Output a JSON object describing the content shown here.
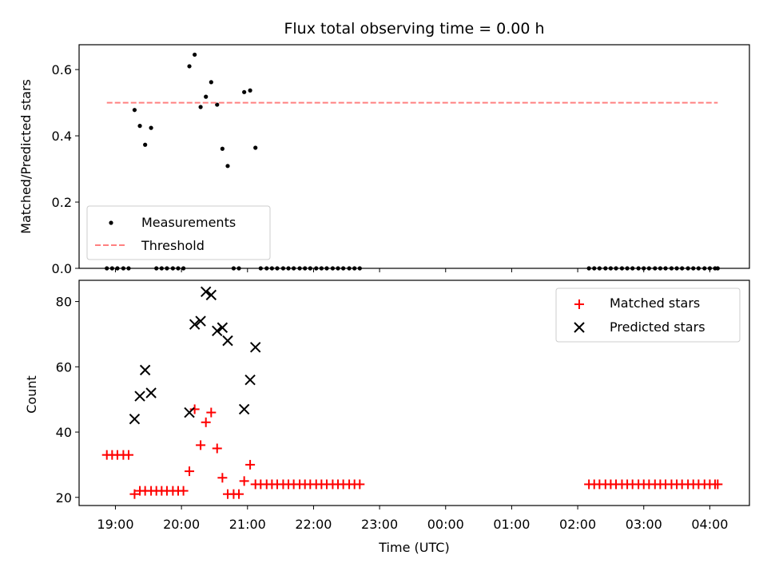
{
  "title": "Flux total observing time = 0.00 h",
  "colors": {
    "measurement": "#000000",
    "threshold": "#ff8080",
    "matched": "#ff0000",
    "predicted": "#000000"
  },
  "x_ticks": [
    "19:00",
    "20:00",
    "21:00",
    "22:00",
    "23:00",
    "00:00",
    "01:00",
    "02:00",
    "03:00",
    "04:00"
  ],
  "xlabel": "Time (UTC)",
  "chart_data": [
    {
      "type": "scatter",
      "ylabel": "Matched/Predicted stars",
      "xlim": [
        18.45,
        28.6
      ],
      "ylim": [
        0,
        0.675
      ],
      "yticks": [
        0.0,
        0.2,
        0.4,
        0.6
      ],
      "ytick_labels": [
        "0.0",
        "0.2",
        "0.4",
        "0.6"
      ],
      "legend_position": "lower-left",
      "series": [
        {
          "name": "Measurements",
          "marker": "dot",
          "points": [
            [
              18.87,
              0.0
            ],
            [
              18.95,
              0.0
            ],
            [
              19.03,
              0.0
            ],
            [
              19.12,
              0.0
            ],
            [
              19.2,
              0.0
            ],
            [
              19.29,
              0.478
            ],
            [
              19.37,
              0.43
            ],
            [
              19.45,
              0.373
            ],
            [
              19.54,
              0.424
            ],
            [
              19.62,
              0.0
            ],
            [
              19.7,
              0.0
            ],
            [
              19.78,
              0.0
            ],
            [
              19.87,
              0.0
            ],
            [
              19.95,
              0.0
            ],
            [
              20.03,
              0.0
            ],
            [
              20.12,
              0.61
            ],
            [
              20.2,
              0.645
            ],
            [
              20.29,
              0.487
            ],
            [
              20.37,
              0.518
            ],
            [
              20.45,
              0.562
            ],
            [
              20.54,
              0.494
            ],
            [
              20.62,
              0.361
            ],
            [
              20.7,
              0.309
            ],
            [
              20.79,
              0.0
            ],
            [
              20.87,
              0.0
            ],
            [
              20.95,
              0.532
            ],
            [
              21.04,
              0.537
            ],
            [
              21.12,
              0.364
            ],
            [
              21.2,
              0.0
            ],
            [
              21.29,
              0.0
            ],
            [
              21.37,
              0.0
            ],
            [
              21.45,
              0.0
            ],
            [
              21.54,
              0.0
            ],
            [
              21.62,
              0.0
            ],
            [
              21.7,
              0.0
            ],
            [
              21.79,
              0.0
            ],
            [
              21.87,
              0.0
            ],
            [
              21.95,
              0.0
            ],
            [
              22.04,
              0.0
            ],
            [
              22.12,
              0.0
            ],
            [
              22.2,
              0.0
            ],
            [
              22.29,
              0.0
            ],
            [
              22.37,
              0.0
            ],
            [
              22.45,
              0.0
            ],
            [
              22.54,
              0.0
            ],
            [
              22.62,
              0.0
            ],
            [
              22.7,
              0.0
            ],
            [
              26.17,
              0.0
            ],
            [
              26.25,
              0.0
            ],
            [
              26.33,
              0.0
            ],
            [
              26.42,
              0.0
            ],
            [
              26.5,
              0.0
            ],
            [
              26.58,
              0.0
            ],
            [
              26.67,
              0.0
            ],
            [
              26.75,
              0.0
            ],
            [
              26.83,
              0.0
            ],
            [
              26.92,
              0.0
            ],
            [
              27.0,
              0.0
            ],
            [
              27.08,
              0.0
            ],
            [
              27.17,
              0.0
            ],
            [
              27.25,
              0.0
            ],
            [
              27.33,
              0.0
            ],
            [
              27.42,
              0.0
            ],
            [
              27.5,
              0.0
            ],
            [
              27.58,
              0.0
            ],
            [
              27.67,
              0.0
            ],
            [
              27.75,
              0.0
            ],
            [
              27.83,
              0.0
            ],
            [
              27.92,
              0.0
            ],
            [
              28.0,
              0.0
            ],
            [
              28.08,
              0.0
            ],
            [
              28.12,
              0.0
            ]
          ]
        },
        {
          "name": "Threshold",
          "type": "line",
          "style": "dashed",
          "x": [
            18.87,
            28.12
          ],
          "y": [
            0.5,
            0.5
          ]
        }
      ]
    },
    {
      "type": "scatter",
      "ylabel": "Count",
      "xlim": [
        18.45,
        28.6
      ],
      "ylim": [
        17.5,
        86.5
      ],
      "yticks": [
        20,
        40,
        60,
        80
      ],
      "ytick_labels": [
        "20",
        "40",
        "60",
        "80"
      ],
      "legend_position": "top-right",
      "series": [
        {
          "name": "Matched stars",
          "marker": "plus",
          "points": [
            [
              18.87,
              33
            ],
            [
              18.95,
              33
            ],
            [
              19.03,
              33
            ],
            [
              19.12,
              33
            ],
            [
              19.2,
              33
            ],
            [
              19.29,
              21
            ],
            [
              19.37,
              22
            ],
            [
              19.45,
              22
            ],
            [
              19.54,
              22
            ],
            [
              19.62,
              22
            ],
            [
              19.7,
              22
            ],
            [
              19.78,
              22
            ],
            [
              19.87,
              22
            ],
            [
              19.95,
              22
            ],
            [
              20.03,
              22
            ],
            [
              20.12,
              28
            ],
            [
              20.2,
              47
            ],
            [
              20.29,
              36
            ],
            [
              20.37,
              43
            ],
            [
              20.45,
              46
            ],
            [
              20.54,
              35
            ],
            [
              20.62,
              26
            ],
            [
              20.7,
              21
            ],
            [
              20.79,
              21
            ],
            [
              20.87,
              21
            ],
            [
              20.95,
              25
            ],
            [
              21.04,
              30
            ],
            [
              21.12,
              24
            ],
            [
              21.2,
              24
            ],
            [
              21.29,
              24
            ],
            [
              21.37,
              24
            ],
            [
              21.45,
              24
            ],
            [
              21.54,
              24
            ],
            [
              21.62,
              24
            ],
            [
              21.7,
              24
            ],
            [
              21.79,
              24
            ],
            [
              21.87,
              24
            ],
            [
              21.95,
              24
            ],
            [
              22.04,
              24
            ],
            [
              22.12,
              24
            ],
            [
              22.2,
              24
            ],
            [
              22.29,
              24
            ],
            [
              22.37,
              24
            ],
            [
              22.45,
              24
            ],
            [
              22.54,
              24
            ],
            [
              22.62,
              24
            ],
            [
              22.7,
              24
            ],
            [
              26.17,
              24
            ],
            [
              26.25,
              24
            ],
            [
              26.33,
              24
            ],
            [
              26.42,
              24
            ],
            [
              26.5,
              24
            ],
            [
              26.58,
              24
            ],
            [
              26.67,
              24
            ],
            [
              26.75,
              24
            ],
            [
              26.83,
              24
            ],
            [
              26.92,
              24
            ],
            [
              27.0,
              24
            ],
            [
              27.08,
              24
            ],
            [
              27.17,
              24
            ],
            [
              27.25,
              24
            ],
            [
              27.33,
              24
            ],
            [
              27.42,
              24
            ],
            [
              27.5,
              24
            ],
            [
              27.58,
              24
            ],
            [
              27.67,
              24
            ],
            [
              27.75,
              24
            ],
            [
              27.83,
              24
            ],
            [
              27.92,
              24
            ],
            [
              28.0,
              24
            ],
            [
              28.08,
              24
            ],
            [
              28.12,
              24
            ]
          ]
        },
        {
          "name": "Predicted stars",
          "marker": "x",
          "points": [
            [
              19.29,
              44
            ],
            [
              19.37,
              51
            ],
            [
              19.45,
              59
            ],
            [
              19.54,
              52
            ],
            [
              20.12,
              46
            ],
            [
              20.2,
              73
            ],
            [
              20.29,
              74
            ],
            [
              20.37,
              83
            ],
            [
              20.45,
              82
            ],
            [
              20.54,
              71
            ],
            [
              20.62,
              72
            ],
            [
              20.7,
              68
            ],
            [
              20.95,
              47
            ],
            [
              21.04,
              56
            ],
            [
              21.12,
              66
            ]
          ]
        }
      ]
    }
  ]
}
